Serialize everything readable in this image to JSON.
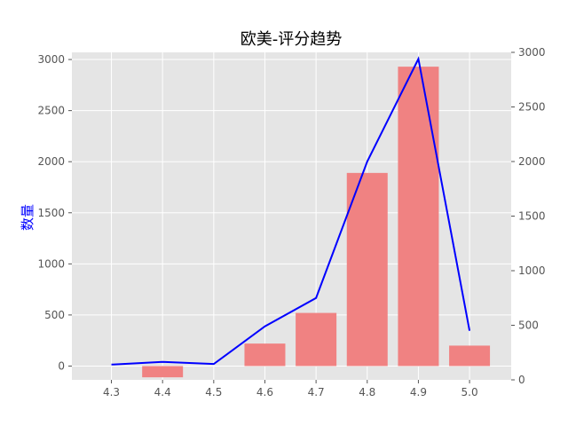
{
  "chart_data": {
    "type": "bar",
    "title": "欧美-评分趋势",
    "ylabel": "数量",
    "xlabel": "",
    "categories": [
      "4.3",
      "4.4",
      "4.5",
      "4.6",
      "4.7",
      "4.8",
      "4.9",
      "5.0"
    ],
    "series": [
      {
        "type": "bar",
        "axis": "left",
        "values": [
          0,
          -110,
          0,
          220,
          520,
          1890,
          2930,
          200
        ],
        "color": "#f08080"
      },
      {
        "type": "line",
        "axis": "right",
        "values": [
          140,
          165,
          145,
          490,
          750,
          2000,
          2940,
          450
        ],
        "color": "#0000ff"
      }
    ],
    "ylim_left": [
      -135,
      3070
    ],
    "yticks_left": [
      0,
      500,
      1000,
      1500,
      2000,
      2500,
      3000
    ],
    "ylim_right": [
      0,
      3000
    ],
    "yticks_right": [
      0,
      500,
      1000,
      1500,
      2000,
      2500,
      3000
    ],
    "grid": true,
    "legend": "none",
    "background": "#e5e5e5"
  }
}
